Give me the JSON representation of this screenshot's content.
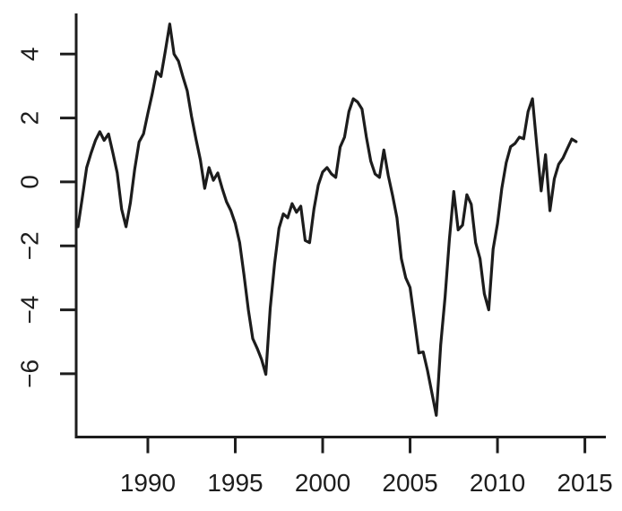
{
  "figure": {
    "background": "#ffffff"
  },
  "chart_data": {
    "type": "line",
    "title": "",
    "xlabel": "",
    "ylabel": "",
    "x_start": 1986.0,
    "x_step": 0.25,
    "x_unit": "year (quarterly series)",
    "values": [
      -1.4,
      -0.5,
      0.45,
      0.9,
      1.3,
      1.57,
      1.3,
      1.5,
      0.9,
      0.28,
      -0.85,
      -1.4,
      -0.65,
      0.4,
      1.25,
      1.5,
      2.15,
      2.75,
      3.45,
      3.3,
      4.1,
      4.94,
      4.0,
      3.78,
      3.3,
      2.85,
      2.05,
      1.35,
      0.7,
      -0.2,
      0.45,
      0.05,
      0.28,
      -0.2,
      -0.62,
      -0.9,
      -1.3,
      -1.9,
      -2.9,
      -4.0,
      -4.9,
      -5.2,
      -5.55,
      -6.02,
      -3.95,
      -2.55,
      -1.45,
      -1.0,
      -1.12,
      -0.68,
      -0.95,
      -0.76,
      -1.83,
      -1.9,
      -0.85,
      -0.1,
      0.31,
      0.45,
      0.25,
      0.14,
      1.09,
      1.4,
      2.2,
      2.6,
      2.5,
      2.28,
      1.4,
      0.65,
      0.25,
      0.14,
      1.0,
      0.2,
      -0.42,
      -1.12,
      -2.4,
      -3.0,
      -3.3,
      -4.31,
      -5.35,
      -5.32,
      -5.9,
      -6.6,
      -7.3,
      -5.1,
      -3.6,
      -1.8,
      -0.3,
      -1.5,
      -1.35,
      -0.4,
      -0.7,
      -1.9,
      -2.4,
      -3.5,
      -4.0,
      -2.1,
      -1.3,
      -0.2,
      0.6,
      1.1,
      1.2,
      1.4,
      1.35,
      2.2,
      2.6,
      1.12,
      -0.28,
      0.85,
      -0.9,
      0.1,
      0.55,
      0.75,
      1.05,
      1.34,
      1.26
    ],
    "x_ticks": [
      {
        "label": "1990",
        "value": 1990
      },
      {
        "label": "1995",
        "value": 1995
      },
      {
        "label": "2000",
        "value": 2000
      },
      {
        "label": "2005",
        "value": 2005
      },
      {
        "label": "2010",
        "value": 2010
      },
      {
        "label": "2015",
        "value": 2015
      }
    ],
    "y_ticks": [
      {
        "label": "4",
        "value": 4
      },
      {
        "label": "2",
        "value": 2
      },
      {
        "label": "0",
        "value": 0
      },
      {
        "label": "−2",
        "value": -2
      },
      {
        "label": "−4",
        "value": -4
      },
      {
        "label": "−6",
        "value": -6
      }
    ],
    "xlim": [
      1985.9,
      2016.2
    ],
    "ylim": [
      -7.98,
      5.27
    ],
    "grid": false,
    "legend": "none",
    "line_color": "#1c1c1c",
    "axis_color": "#1d1d1d",
    "tick_label_color": "#1d1d1d"
  }
}
